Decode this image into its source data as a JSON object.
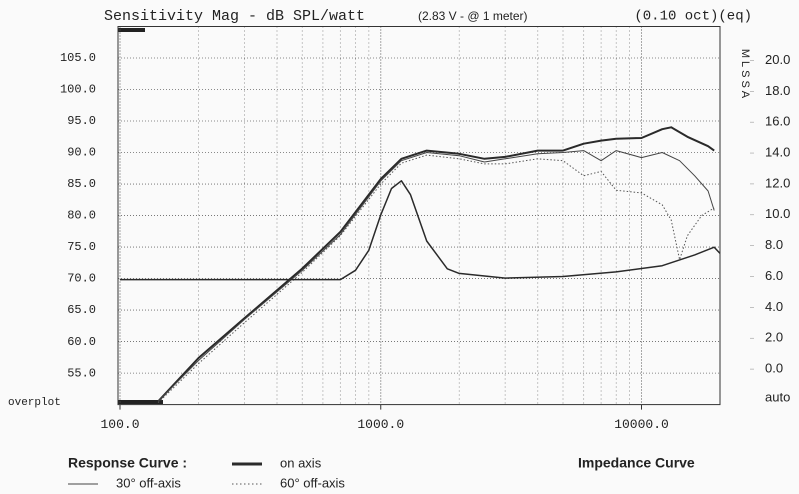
{
  "chart_data": {
    "type": "line",
    "title": "Sensitivity Mag - dB SPL/watt",
    "subtitle": "(2.83 V - @ 1 meter)",
    "title_right": "(0.10 oct)(eq)",
    "watermark": "MLSSA",
    "x_scale": "log",
    "xlim": [
      100,
      20000
    ],
    "xticks": [
      {
        "value": 100,
        "label": "100.0"
      },
      {
        "value": 1000,
        "label": "1000.0"
      },
      {
        "value": 10000,
        "label": "10000.0"
      }
    ],
    "xminor_ticks": [
      200,
      300,
      400,
      500,
      600,
      700,
      800,
      900,
      2000,
      3000,
      4000,
      5000,
      6000,
      7000,
      8000,
      9000
    ],
    "ylim": [
      50,
      110
    ],
    "yticks": [
      {
        "value": 55,
        "label": "55.0"
      },
      {
        "value": 60,
        "label": "60.0"
      },
      {
        "value": 65,
        "label": "65.0"
      },
      {
        "value": 70,
        "label": "70.0"
      },
      {
        "value": 75,
        "label": "75.0"
      },
      {
        "value": 80,
        "label": "80.0"
      },
      {
        "value": 85,
        "label": "85.0"
      },
      {
        "value": 90,
        "label": "90.0"
      },
      {
        "value": 95,
        "label": "95.0"
      },
      {
        "value": 100,
        "label": "100.0"
      },
      {
        "value": 105,
        "label": "105.0"
      }
    ],
    "y_bottom_label": "overplot",
    "y2lim": [
      -2.3,
      22.2
    ],
    "y2ticks": [
      {
        "value": 0,
        "label": "0.0"
      },
      {
        "value": 2,
        "label": "2.0"
      },
      {
        "value": 4,
        "label": "4.0"
      },
      {
        "value": 6,
        "label": "6.0"
      },
      {
        "value": 8,
        "label": "8.0"
      },
      {
        "value": 10,
        "label": "10.0"
      },
      {
        "value": 12,
        "label": "12.0"
      },
      {
        "value": 14,
        "label": "14.0"
      },
      {
        "value": 16,
        "label": "16.0"
      },
      {
        "value": 18,
        "label": "18.0"
      },
      {
        "value": 20,
        "label": "20.0"
      }
    ],
    "y2_bottom_label": "auto",
    "grid": true,
    "legend_title": "Response Curve :",
    "series": [
      {
        "name": "on axis",
        "color": "#2a2a2a",
        "width": 2,
        "style": "solid",
        "x": [
          140,
          200,
          300,
          500,
          700,
          1000,
          1200,
          1500,
          2000,
          2500,
          3000,
          4000,
          5000,
          6000,
          7000,
          8000,
          10000,
          12000,
          13000,
          15000,
          18000,
          19000
        ],
        "values": [
          50.5,
          57.4,
          63.7,
          71.6,
          77.4,
          85.8,
          89,
          90.3,
          89.8,
          89,
          89.3,
          90.3,
          90.3,
          91.4,
          91.9,
          92.2,
          92.3,
          93.7,
          94,
          92.5,
          91,
          90.3
        ]
      },
      {
        "name": "30° off-axis",
        "color": "#444444",
        "width": 1,
        "style": "solid",
        "x": [
          140,
          200,
          300,
          500,
          700,
          1000,
          1200,
          1500,
          2000,
          2500,
          3000,
          4000,
          5000,
          6000,
          7000,
          8000,
          10000,
          12000,
          14000,
          16000,
          18000,
          19000
        ],
        "values": [
          50.5,
          57,
          63.5,
          71.3,
          77,
          85.5,
          88.7,
          90,
          89.5,
          88.5,
          89,
          89.8,
          90,
          90.3,
          88.7,
          90.3,
          89.2,
          90,
          88.7,
          86.3,
          83.9,
          80.8
        ]
      },
      {
        "name": "60° off-axis",
        "color": "#555555",
        "width": 1,
        "style": "dotted",
        "x": [
          140,
          200,
          300,
          500,
          700,
          1000,
          1200,
          1500,
          2000,
          2500,
          3000,
          4000,
          5000,
          6000,
          7000,
          8000,
          10000,
          12000,
          13000,
          14000,
          15000,
          17000,
          19000
        ],
        "values": [
          50.3,
          56.5,
          63,
          71,
          76.8,
          85,
          88.3,
          89.6,
          89,
          88.2,
          88.2,
          89,
          88.7,
          86.3,
          87,
          84,
          83.6,
          81.7,
          79.3,
          73,
          76.8,
          80,
          81.2
        ]
      },
      {
        "name": "Impedance Curve",
        "color": "#2a2a2a",
        "width": 1.5,
        "style": "solid",
        "axis": "y2",
        "x": [
          100,
          300,
          700,
          800,
          900,
          1000,
          1100,
          1200,
          1300,
          1500,
          1800,
          2000,
          3000,
          5000,
          8000,
          12000,
          16000,
          19000,
          20000
        ],
        "values": [
          5.8,
          5.8,
          5.8,
          6.4,
          7.7,
          10,
          11.7,
          12.2,
          11.3,
          8.3,
          6.5,
          6.2,
          5.9,
          6,
          6.3,
          6.7,
          7.4,
          7.9,
          7.5
        ]
      }
    ]
  }
}
